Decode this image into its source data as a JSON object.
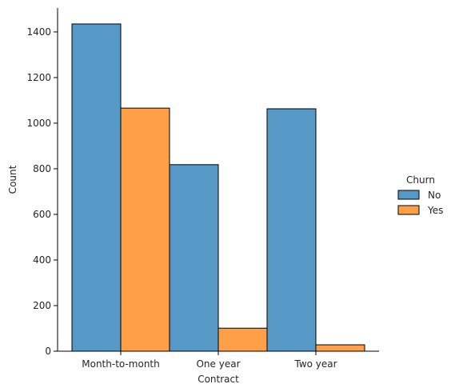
{
  "chart_data": {
    "type": "bar",
    "title": "",
    "xlabel": "Contract",
    "ylabel": "Count",
    "categories": [
      "Month-to-month",
      "One year",
      "Two year"
    ],
    "series": [
      {
        "name": "No",
        "values": [
          1435,
          818,
          1063
        ],
        "color": "#5698c6"
      },
      {
        "name": "Yes",
        "values": [
          1066,
          101,
          28
        ],
        "color": "#ff9f47"
      }
    ],
    "ylim": [
      0,
      1505
    ],
    "yticks": [
      0,
      200,
      400,
      600,
      800,
      1000,
      1200,
      1400
    ],
    "legend": {
      "title": "Churn",
      "placement": "right"
    },
    "grid": false
  }
}
